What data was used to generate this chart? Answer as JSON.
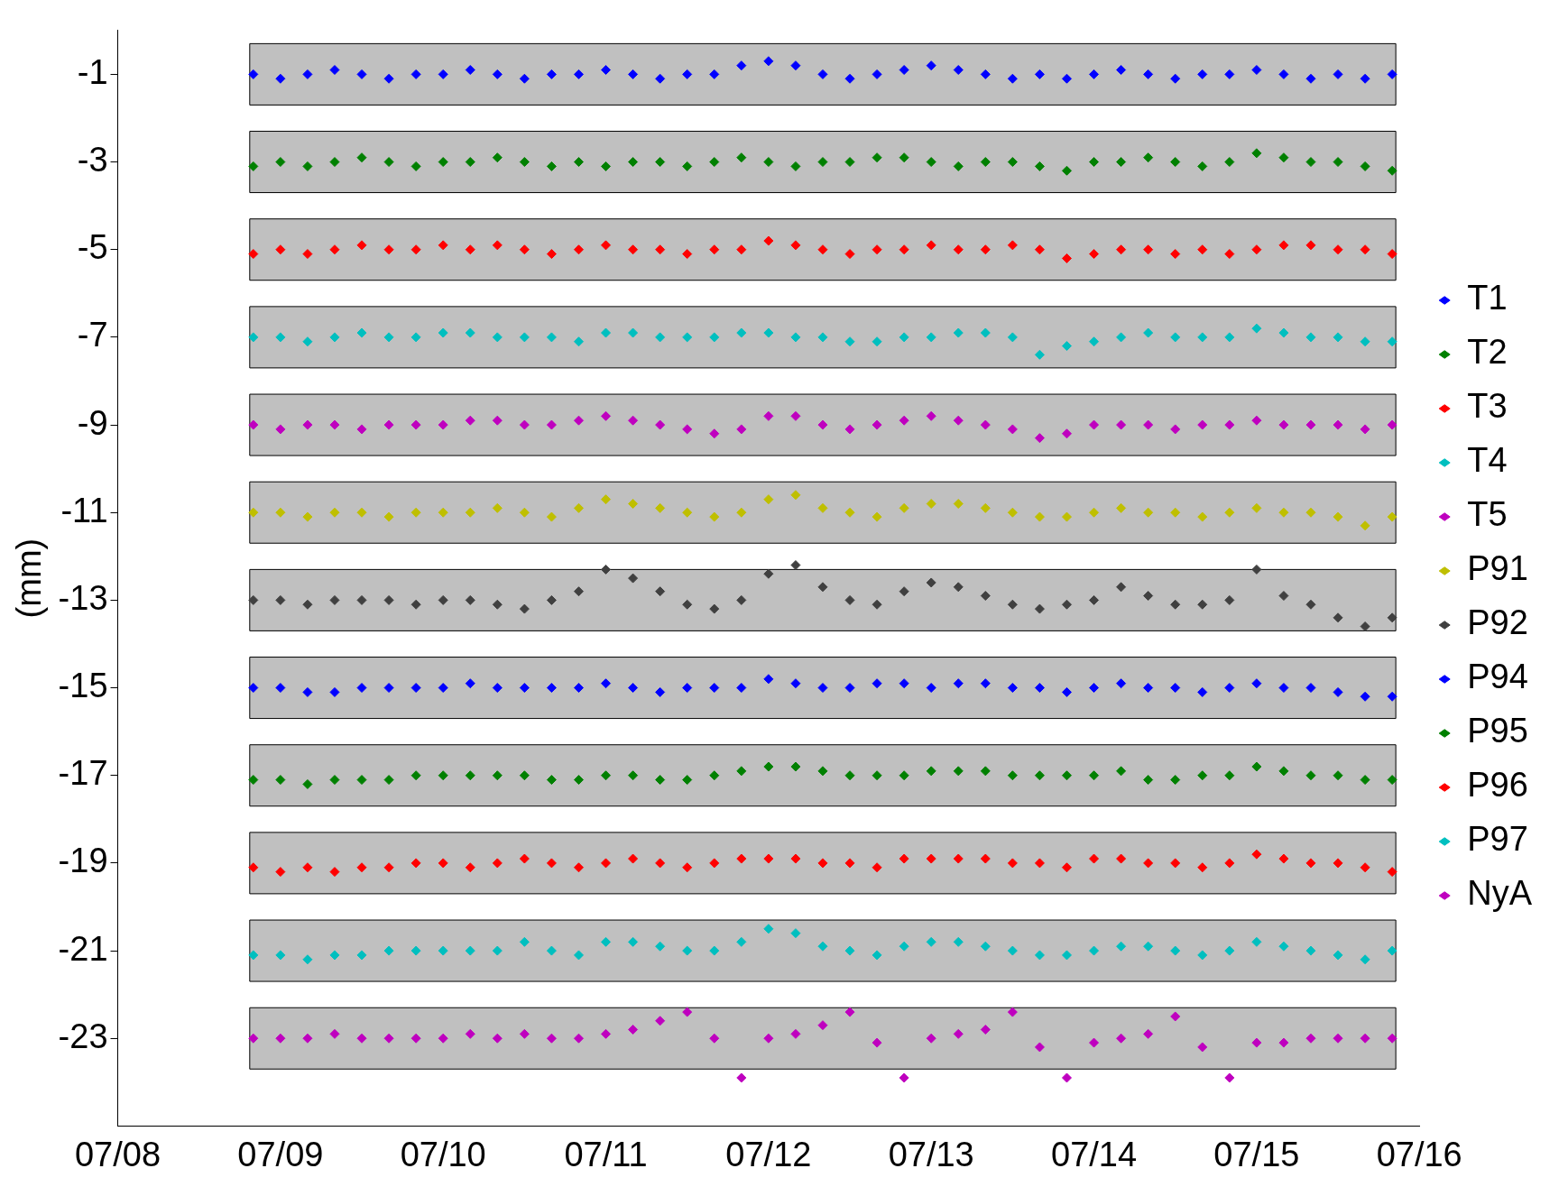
{
  "chart_data": {
    "type": "scatter",
    "ylabel": "(mm)",
    "x": [
      "--07-08T20:00",
      "--07-09T00:00",
      "--07-09T04:00",
      "--07-09T08:00",
      "--07-09T12:00",
      "--07-09T16:00",
      "--07-09T20:00",
      "--07-10T00:00",
      "--07-10T04:00",
      "--07-10T08:00",
      "--07-10T12:00",
      "--07-10T16:00",
      "--07-10T20:00",
      "--07-11T00:00",
      "--07-11T04:00",
      "--07-11T08:00",
      "--07-11T12:00",
      "--07-11T16:00",
      "--07-11T20:00",
      "--07-12T00:00",
      "--07-12T04:00",
      "--07-12T08:00",
      "--07-12T12:00",
      "--07-12T16:00",
      "--07-12T20:00",
      "--07-13T00:00",
      "--07-13T04:00",
      "--07-13T08:00",
      "--07-13T12:00",
      "--07-13T16:00",
      "--07-13T20:00",
      "--07-14T00:00",
      "--07-14T04:00",
      "--07-14T08:00",
      "--07-14T12:00",
      "--07-14T16:00",
      "--07-14T20:00",
      "--07-15T00:00",
      "--07-15T04:00",
      "--07-15T08:00",
      "--07-15T12:00",
      "--07-15T16:00",
      "--07-15T20:00"
    ],
    "series": [
      {
        "name": "T1",
        "color": "#0000ff",
        "values": [
          -1.0,
          -1.1,
          -1.0,
          -0.9,
          -1.0,
          -1.1,
          -1.0,
          -1.0,
          -0.9,
          -1.0,
          -1.1,
          -1.0,
          -1.0,
          -0.9,
          -1.0,
          -1.1,
          -1.0,
          -1.0,
          -0.8,
          -0.7,
          -0.8,
          -1.0,
          -1.1,
          -1.0,
          -0.9,
          -0.8,
          -0.9,
          -1.0,
          -1.1,
          -1.0,
          -1.1,
          -1.0,
          -0.9,
          -1.0,
          -1.1,
          -1.0,
          -1.0,
          -0.9,
          -1.0,
          -1.1,
          -1.0,
          -1.1,
          -1.0
        ]
      },
      {
        "name": "T2",
        "color": "#008000",
        "values": [
          -3.1,
          -3.0,
          -3.1,
          -3.0,
          -2.9,
          -3.0,
          -3.1,
          -3.0,
          -3.0,
          -2.9,
          -3.0,
          -3.1,
          -3.0,
          -3.1,
          -3.0,
          -3.0,
          -3.1,
          -3.0,
          -2.9,
          -3.0,
          -3.1,
          -3.0,
          -3.0,
          -2.9,
          -2.9,
          -3.0,
          -3.1,
          -3.0,
          -3.0,
          -3.1,
          -3.2,
          -3.0,
          -3.0,
          -2.9,
          -3.0,
          -3.1,
          -3.0,
          -2.8,
          -2.9,
          -3.0,
          -3.0,
          -3.1,
          -3.2
        ]
      },
      {
        "name": "T3",
        "color": "#ff0000",
        "values": [
          -5.1,
          -5.0,
          -5.1,
          -5.0,
          -4.9,
          -5.0,
          -5.0,
          -4.9,
          -5.0,
          -4.9,
          -5.0,
          -5.1,
          -5.0,
          -4.9,
          -5.0,
          -5.0,
          -5.1,
          -5.0,
          -5.0,
          -4.8,
          -4.9,
          -5.0,
          -5.1,
          -5.0,
          -5.0,
          -4.9,
          -5.0,
          -5.0,
          -4.9,
          -5.0,
          -5.2,
          -5.1,
          -5.0,
          -5.0,
          -5.1,
          -5.0,
          -5.1,
          -5.0,
          -4.9,
          -4.9,
          -5.0,
          -5.0,
          -5.1
        ]
      },
      {
        "name": "T4",
        "color": "#00bfbf",
        "values": [
          -7.0,
          -7.0,
          -7.1,
          -7.0,
          -6.9,
          -7.0,
          -7.0,
          -6.9,
          -6.9,
          -7.0,
          -7.0,
          -7.0,
          -7.1,
          -6.9,
          -6.9,
          -7.0,
          -7.0,
          -7.0,
          -6.9,
          -6.9,
          -7.0,
          -7.0,
          -7.1,
          -7.1,
          -7.0,
          -7.0,
          -6.9,
          -6.9,
          -7.0,
          -7.4,
          -7.2,
          -7.1,
          -7.0,
          -6.9,
          -7.0,
          -7.0,
          -7.0,
          -6.8,
          -6.9,
          -7.0,
          -7.0,
          -7.1,
          -7.1
        ]
      },
      {
        "name": "T5",
        "color": "#bf00bf",
        "values": [
          -9.0,
          -9.1,
          -9.0,
          -9.0,
          -9.1,
          -9.0,
          -9.0,
          -9.0,
          -8.9,
          -8.9,
          -9.0,
          -9.0,
          -8.9,
          -8.8,
          -8.9,
          -9.0,
          -9.1,
          -9.2,
          -9.1,
          -8.8,
          -8.8,
          -9.0,
          -9.1,
          -9.0,
          -8.9,
          -8.8,
          -8.9,
          -9.0,
          -9.1,
          -9.3,
          -9.2,
          -9.0,
          -9.0,
          -9.0,
          -9.1,
          -9.0,
          -9.0,
          -8.9,
          -9.0,
          -9.0,
          -9.0,
          -9.1,
          -9.0
        ]
      },
      {
        "name": "P91",
        "color": "#bfbf00",
        "values": [
          -11.0,
          -11.0,
          -11.1,
          -11.0,
          -11.0,
          -11.1,
          -11.0,
          -11.0,
          -11.0,
          -10.9,
          -11.0,
          -11.1,
          -10.9,
          -10.7,
          -10.8,
          -10.9,
          -11.0,
          -11.1,
          -11.0,
          -10.7,
          -10.6,
          -10.9,
          -11.0,
          -11.1,
          -10.9,
          -10.8,
          -10.8,
          -10.9,
          -11.0,
          -11.1,
          -11.1,
          -11.0,
          -10.9,
          -11.0,
          -11.0,
          -11.1,
          -11.0,
          -10.9,
          -11.0,
          -11.0,
          -11.1,
          -11.3,
          -11.1
        ]
      },
      {
        "name": "P92",
        "color": "#404040",
        "values": [
          -13.0,
          -13.0,
          -13.1,
          -13.0,
          -13.0,
          -13.0,
          -13.1,
          -13.0,
          -13.0,
          -13.1,
          -13.2,
          -13.0,
          -12.8,
          -12.3,
          -12.5,
          -12.8,
          -13.1,
          -13.2,
          -13.0,
          -12.4,
          -12.2,
          -12.7,
          -13.0,
          -13.1,
          -12.8,
          -12.6,
          -12.7,
          -12.9,
          -13.1,
          -13.2,
          -13.1,
          -13.0,
          -12.7,
          -12.9,
          -13.1,
          -13.1,
          -13.0,
          -12.3,
          -12.9,
          -13.1,
          -13.4,
          -13.6,
          -13.4
        ]
      },
      {
        "name": "P94",
        "color": "#0000ff",
        "values": [
          -15.0,
          -15.0,
          -15.1,
          -15.1,
          -15.0,
          -15.0,
          -15.0,
          -15.0,
          -14.9,
          -15.0,
          -15.0,
          -15.0,
          -15.0,
          -14.9,
          -15.0,
          -15.1,
          -15.0,
          -15.0,
          -15.0,
          -14.8,
          -14.9,
          -15.0,
          -15.0,
          -14.9,
          -14.9,
          -15.0,
          -14.9,
          -14.9,
          -15.0,
          -15.0,
          -15.1,
          -15.0,
          -14.9,
          -15.0,
          -15.0,
          -15.1,
          -15.0,
          -14.9,
          -15.0,
          -15.0,
          -15.1,
          -15.2,
          -15.2
        ]
      },
      {
        "name": "P95",
        "color": "#008000",
        "values": [
          -17.1,
          -17.1,
          -17.2,
          -17.1,
          -17.1,
          -17.1,
          -17.0,
          -17.0,
          -17.0,
          -17.0,
          -17.0,
          -17.1,
          -17.1,
          -17.0,
          -17.0,
          -17.1,
          -17.1,
          -17.0,
          -16.9,
          -16.8,
          -16.8,
          -16.9,
          -17.0,
          -17.0,
          -17.0,
          -16.9,
          -16.9,
          -16.9,
          -17.0,
          -17.0,
          -17.0,
          -17.0,
          -16.9,
          -17.1,
          -17.1,
          -17.0,
          -17.0,
          -16.8,
          -16.9,
          -17.0,
          -17.0,
          -17.1,
          -17.1
        ]
      },
      {
        "name": "P96",
        "color": "#ff0000",
        "values": [
          -19.1,
          -19.2,
          -19.1,
          -19.2,
          -19.1,
          -19.1,
          -19.0,
          -19.0,
          -19.1,
          -19.0,
          -18.9,
          -19.0,
          -19.1,
          -19.0,
          -18.9,
          -19.0,
          -19.1,
          -19.0,
          -18.9,
          -18.9,
          -18.9,
          -19.0,
          -19.0,
          -19.1,
          -18.9,
          -18.9,
          -18.9,
          -18.9,
          -19.0,
          -19.0,
          -19.1,
          -18.9,
          -18.9,
          -19.0,
          -19.0,
          -19.1,
          -19.0,
          -18.8,
          -18.9,
          -19.0,
          -19.0,
          -19.1,
          -19.2
        ]
      },
      {
        "name": "P97",
        "color": "#00bfbf",
        "values": [
          -21.1,
          -21.1,
          -21.2,
          -21.1,
          -21.1,
          -21.0,
          -21.0,
          -21.0,
          -21.0,
          -21.0,
          -20.8,
          -21.0,
          -21.1,
          -20.8,
          -20.8,
          -20.9,
          -21.0,
          -21.0,
          -20.8,
          -20.5,
          -20.6,
          -20.9,
          -21.0,
          -21.1,
          -20.9,
          -20.8,
          -20.8,
          -20.9,
          -21.0,
          -21.1,
          -21.1,
          -21.0,
          -20.9,
          -20.9,
          -21.0,
          -21.1,
          -21.0,
          -20.8,
          -20.9,
          -21.0,
          -21.1,
          -21.2,
          -21.0
        ]
      },
      {
        "name": "NyA",
        "color": "#bf00bf",
        "values": [
          -23.0,
          -23.0,
          -23.0,
          -22.9,
          -23.0,
          -23.0,
          -23.0,
          -23.0,
          -22.9,
          -23.0,
          -22.9,
          -23.0,
          -23.0,
          -22.9,
          -22.8,
          -22.6,
          -22.4,
          -23.0,
          -23.9,
          -23.0,
          -22.9,
          -22.7,
          -22.4,
          -23.1,
          -23.9,
          -23.0,
          -22.9,
          -22.8,
          -22.4,
          -23.2,
          -23.9,
          -23.1,
          -23.0,
          -22.9,
          -22.5,
          -23.2,
          -23.9,
          -23.1,
          -23.1,
          -23.0,
          -23.0,
          -23.0,
          -23.0
        ]
      }
    ],
    "bands": [
      {
        "axis": "y",
        "from": -1.7,
        "to": -0.3,
        "color": "#c0c0c0"
      },
      {
        "axis": "y",
        "from": -3.7,
        "to": -2.3,
        "color": "#c0c0c0"
      },
      {
        "axis": "y",
        "from": -5.7,
        "to": -4.3,
        "color": "#c0c0c0"
      },
      {
        "axis": "y",
        "from": -7.7,
        "to": -6.3,
        "color": "#c0c0c0"
      },
      {
        "axis": "y",
        "from": -9.7,
        "to": -8.3,
        "color": "#c0c0c0"
      },
      {
        "axis": "y",
        "from": -11.7,
        "to": -10.3,
        "color": "#c0c0c0"
      },
      {
        "axis": "y",
        "from": -13.7,
        "to": -12.3,
        "color": "#c0c0c0"
      },
      {
        "axis": "y",
        "from": -15.7,
        "to": -14.3,
        "color": "#c0c0c0"
      },
      {
        "axis": "y",
        "from": -17.7,
        "to": -16.3,
        "color": "#c0c0c0"
      },
      {
        "axis": "y",
        "from": -19.7,
        "to": -18.3,
        "color": "#c0c0c0"
      },
      {
        "axis": "y",
        "from": -21.7,
        "to": -20.3,
        "color": "#c0c0c0"
      },
      {
        "axis": "y",
        "from": -23.7,
        "to": -22.3,
        "color": "#c0c0c0"
      }
    ],
    "xlim": [
      "--07-08",
      "--07-16"
    ],
    "xticks": [
      {
        "value": "--07-08",
        "label": "07/08"
      },
      {
        "value": "--07-09",
        "label": "07/09"
      },
      {
        "value": "--07-10",
        "label": "07/10"
      },
      {
        "value": "--07-11",
        "label": "07/11"
      },
      {
        "value": "--07-12",
        "label": "07/12"
      },
      {
        "value": "--07-13",
        "label": "07/13"
      },
      {
        "value": "--07-14",
        "label": "07/14"
      },
      {
        "value": "--07-15",
        "label": "07/15"
      },
      {
        "value": "--07-16",
        "label": "07/16"
      }
    ],
    "ylim": [
      -25,
      0
    ],
    "yticks": [
      -1,
      -3,
      -5,
      -7,
      -9,
      -11,
      -13,
      -15,
      -17,
      -19,
      -21,
      -23
    ],
    "grid": false,
    "legend": "right",
    "marker": "diamond"
  }
}
